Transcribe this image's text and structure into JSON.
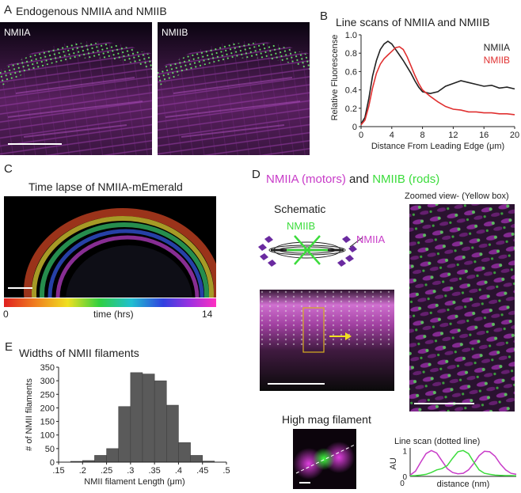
{
  "panels": {
    "A": {
      "letter": "A",
      "title": "Endogenous NMIIA and NMIIB",
      "left_label": "NMIIA",
      "right_label": "NMIIB"
    },
    "B": {
      "letter": "B",
      "title": "Line scans of NMIIA and NMIIB"
    },
    "C": {
      "letter": "C",
      "title": "Time lapse of NMIIA-mEmerald",
      "colorbar_min": "0",
      "colorbar_label": "time (hrs)",
      "colorbar_max": "14"
    },
    "D": {
      "letter": "D",
      "title_part1": "NMIIA (motors)",
      "title_and": " and ",
      "title_part2": "NMIIB (rods)",
      "zoom_title": "Zoomed view- (Yellow box)",
      "schematic_title": "Schematic",
      "schematic_label_b": "NMIIB",
      "schematic_label_a": "NMIIA",
      "highmag_title": "High mag filament",
      "linescan_title": "Line scan (dotted line)"
    },
    "E": {
      "letter": "E",
      "title": "Widths of NMII filaments"
    }
  },
  "colors": {
    "nmiia_magenta": "#c83cc8",
    "nmiib_green": "#3cdc3c",
    "line_black": "#222222",
    "line_red": "#e03030",
    "bar_gray": "#5a5a5a",
    "box_yellow": "#d8b020",
    "arrow_yellow": "#f0e020"
  },
  "chart_data": [
    {
      "type": "line",
      "xlabel": "Distance From Leading Edge (μm)",
      "ylabel": "Relative Fluorescense",
      "xlim": [
        0,
        20
      ],
      "ylim": [
        0,
        1.0
      ],
      "xticks": [
        "0",
        "4",
        "8",
        "12",
        "16",
        "20"
      ],
      "yticks": [
        "0",
        "0.2",
        "0.4",
        "0.6",
        "0.8",
        "1.0"
      ],
      "legend": "top-right",
      "series": [
        {
          "name": "NMIIA",
          "color": "#222222",
          "x": [
            0,
            0.5,
            1,
            1.5,
            2,
            2.5,
            3,
            3.5,
            4,
            4.5,
            5,
            5.5,
            6,
            6.5,
            7,
            7.5,
            8,
            9,
            10,
            11,
            12,
            13,
            14,
            15,
            16,
            17,
            18,
            19,
            20
          ],
          "y": [
            0.03,
            0.1,
            0.3,
            0.55,
            0.72,
            0.84,
            0.9,
            0.93,
            0.9,
            0.84,
            0.78,
            0.72,
            0.65,
            0.58,
            0.5,
            0.43,
            0.38,
            0.36,
            0.38,
            0.44,
            0.47,
            0.5,
            0.48,
            0.46,
            0.44,
            0.45,
            0.42,
            0.43,
            0.41
          ]
        },
        {
          "name": "NMIIB",
          "color": "#e03030",
          "x": [
            0,
            0.5,
            1,
            1.5,
            2,
            2.5,
            3,
            3.5,
            4,
            4.5,
            5,
            5.5,
            6,
            6.5,
            7,
            7.5,
            8,
            9,
            10,
            11,
            12,
            13,
            14,
            15,
            16,
            17,
            18,
            19,
            20
          ],
          "y": [
            0.02,
            0.07,
            0.22,
            0.42,
            0.58,
            0.68,
            0.74,
            0.78,
            0.82,
            0.86,
            0.87,
            0.84,
            0.76,
            0.66,
            0.56,
            0.47,
            0.4,
            0.33,
            0.27,
            0.22,
            0.19,
            0.18,
            0.16,
            0.16,
            0.15,
            0.15,
            0.14,
            0.14,
            0.13
          ]
        }
      ]
    },
    {
      "type": "bar",
      "xlabel": "NMII filament Length (μm)",
      "ylabel": "# of NMII filaments",
      "xlim": [
        0.15,
        0.5
      ],
      "ylim": [
        0,
        350
      ],
      "xticks": [
        ".15",
        ".2",
        ".25",
        ".3",
        ".35",
        ".4",
        ".45",
        ".5"
      ],
      "yticks": [
        "0",
        "50",
        "100",
        "150",
        "200",
        "250",
        "300",
        "350"
      ],
      "bin_left": [
        0.175,
        0.2,
        0.225,
        0.25,
        0.275,
        0.3,
        0.325,
        0.35,
        0.375,
        0.4,
        0.425,
        0.45
      ],
      "bin_width": 0.025,
      "values": [
        3,
        6,
        25,
        50,
        205,
        330,
        325,
        300,
        210,
        72,
        25,
        4
      ]
    },
    {
      "type": "line",
      "xlabel": "distance (nm)",
      "ylabel": "AU",
      "xticks": [
        "0"
      ],
      "yticks": [
        "0",
        "1"
      ],
      "ylim": [
        0,
        1.1
      ],
      "xlim": [
        0,
        1
      ],
      "series": [
        {
          "color": "#c83cc8",
          "x": [
            0,
            0.05,
            0.1,
            0.15,
            0.2,
            0.25,
            0.3,
            0.35,
            0.4,
            0.45,
            0.5,
            0.55,
            0.6,
            0.65,
            0.7,
            0.75,
            0.8,
            0.85,
            0.9,
            0.95,
            1.0
          ],
          "y": [
            0.05,
            0.2,
            0.55,
            0.88,
            1.0,
            0.9,
            0.6,
            0.3,
            0.15,
            0.1,
            0.12,
            0.25,
            0.5,
            0.8,
            0.97,
            0.95,
            0.78,
            0.48,
            0.25,
            0.12,
            0.08
          ]
        },
        {
          "color": "#3cdc3c",
          "x": [
            0,
            0.05,
            0.1,
            0.15,
            0.2,
            0.25,
            0.3,
            0.35,
            0.4,
            0.45,
            0.5,
            0.55,
            0.6,
            0.65,
            0.7,
            0.75,
            0.8,
            0.85,
            0.9,
            0.95,
            1.0
          ],
          "y": [
            0.02,
            0.03,
            0.05,
            0.08,
            0.15,
            0.25,
            0.3,
            0.42,
            0.7,
            0.95,
            1.0,
            0.88,
            0.55,
            0.25,
            0.12,
            0.08,
            0.05,
            0.04,
            0.03,
            0.03,
            0.02
          ]
        }
      ]
    }
  ]
}
